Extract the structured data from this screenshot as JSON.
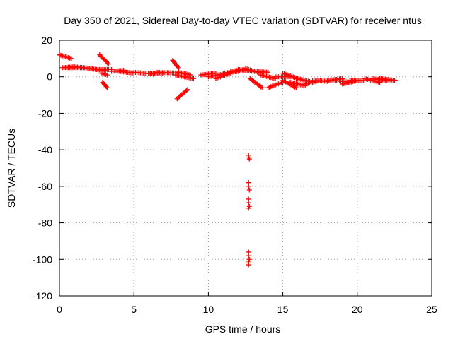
{
  "chart_data": {
    "type": "scatter",
    "title": "Day 350 of 2021, Sidereal Day-to-day VTEC variation (SDTVAR) for receiver ntus",
    "xlabel": "GPS time / hours",
    "ylabel": "SDTVAR / TECUs",
    "xlim": [
      0,
      25
    ],
    "ylim": [
      -120,
      20
    ],
    "xticks": [
      0,
      5,
      10,
      15,
      20,
      25
    ],
    "yticks": [
      20,
      0,
      -20,
      -40,
      -60,
      -80,
      -100,
      -120
    ],
    "grid": true,
    "marker": "+",
    "color": "#ff0000",
    "segments": [
      {
        "x": [
          0.0,
          0.8
        ],
        "y": [
          12,
          10
        ]
      },
      {
        "x": [
          0.2,
          1.0
        ],
        "y": [
          5,
          5.5
        ]
      },
      {
        "x": [
          0.5,
          1.5
        ],
        "y": [
          5,
          5
        ]
      },
      {
        "x": [
          1.0,
          2.2
        ],
        "y": [
          5.5,
          4.5
        ]
      },
      {
        "x": [
          2.0,
          3.0
        ],
        "y": [
          4.5,
          3.5
        ]
      },
      {
        "x": [
          2.5,
          3.5
        ],
        "y": [
          4,
          4
        ]
      },
      {
        "x": [
          2.7,
          3.3
        ],
        "y": [
          12,
          7
        ]
      },
      {
        "x": [
          2.8,
          3.2
        ],
        "y": [
          2,
          1
        ]
      },
      {
        "x": [
          2.9,
          3.2
        ],
        "y": [
          -3,
          -6
        ]
      },
      {
        "x": [
          3.5,
          4.3
        ],
        "y": [
          3,
          3.5
        ]
      },
      {
        "x": [
          4.0,
          5.0
        ],
        "y": [
          3,
          2
        ]
      },
      {
        "x": [
          5.0,
          6.3
        ],
        "y": [
          2.5,
          1.5
        ]
      },
      {
        "x": [
          6.0,
          7.0
        ],
        "y": [
          2,
          2
        ]
      },
      {
        "x": [
          6.5,
          8.0
        ],
        "y": [
          2.5,
          2
        ]
      },
      {
        "x": [
          7.6,
          8.0
        ],
        "y": [
          9,
          5
        ]
      },
      {
        "x": [
          7.8,
          9.0
        ],
        "y": [
          1,
          -1
        ]
      },
      {
        "x": [
          7.9,
          8.6
        ],
        "y": [
          -12,
          -7
        ]
      },
      {
        "x": [
          8.0,
          8.8
        ],
        "y": [
          2.5,
          1
        ]
      },
      {
        "x": [
          9.5,
          10.5
        ],
        "y": [
          1,
          2
        ]
      },
      {
        "x": [
          10.0,
          11.0
        ],
        "y": [
          0,
          1.5
        ]
      },
      {
        "x": [
          10.5,
          11.5
        ],
        "y": [
          -1,
          2
        ]
      },
      {
        "x": [
          11.0,
          12.0
        ],
        "y": [
          2,
          3
        ]
      },
      {
        "x": [
          11.5,
          12.5
        ],
        "y": [
          3,
          4
        ]
      },
      {
        "x": [
          12.0,
          13.0
        ],
        "y": [
          4,
          3
        ]
      },
      {
        "x": [
          12.5,
          13.5
        ],
        "y": [
          4.5,
          2
        ]
      },
      {
        "x": [
          12.8,
          13.6
        ],
        "y": [
          -1,
          -6
        ]
      },
      {
        "x": [
          13.0,
          14.0
        ],
        "y": [
          3,
          2.5
        ]
      },
      {
        "x": [
          13.5,
          14.5
        ],
        "y": [
          1,
          -1
        ]
      },
      {
        "x": [
          14.0,
          15.0
        ],
        "y": [
          -6,
          -3
        ]
      },
      {
        "x": [
          14.5,
          15.5
        ],
        "y": [
          0,
          0
        ]
      },
      {
        "x": [
          15.0,
          16.0
        ],
        "y": [
          2,
          -1
        ]
      },
      {
        "x": [
          15.0,
          15.9
        ],
        "y": [
          -2,
          -6
        ]
      },
      {
        "x": [
          15.5,
          16.5
        ],
        "y": [
          -3,
          -5
        ]
      },
      {
        "x": [
          16.0,
          17.0
        ],
        "y": [
          -1,
          -3
        ]
      },
      {
        "x": [
          16.5,
          17.5
        ],
        "y": [
          -4,
          -2
        ]
      },
      {
        "x": [
          17.0,
          18.0
        ],
        "y": [
          -2,
          -2.5
        ]
      },
      {
        "x": [
          18.0,
          19.0
        ],
        "y": [
          -2,
          -1
        ]
      },
      {
        "x": [
          18.5,
          19.5
        ],
        "y": [
          -2,
          -3
        ]
      },
      {
        "x": [
          19.0,
          20.0
        ],
        "y": [
          -4,
          -2
        ]
      },
      {
        "x": [
          19.5,
          20.5
        ],
        "y": [
          -2,
          -2
        ]
      },
      {
        "x": [
          20.5,
          21.5
        ],
        "y": [
          -1,
          -3
        ]
      },
      {
        "x": [
          21.0,
          22.0
        ],
        "y": [
          -1,
          -2
        ]
      },
      {
        "x": [
          21.5,
          22.6
        ],
        "y": [
          -1,
          -2
        ]
      }
    ],
    "outliers": {
      "x": [
        12.7,
        12.7,
        12.75,
        12.7,
        12.7,
        12.75,
        12.7,
        12.7,
        12.75,
        12.7,
        12.7,
        12.7,
        12.75,
        12.7,
        12.7,
        12.7
      ],
      "y": [
        -43,
        -44,
        -45,
        -58,
        -60,
        -62,
        -67,
        -69,
        -71,
        -72,
        -96,
        -98,
        -100,
        -101,
        -102,
        -103
      ]
    }
  }
}
